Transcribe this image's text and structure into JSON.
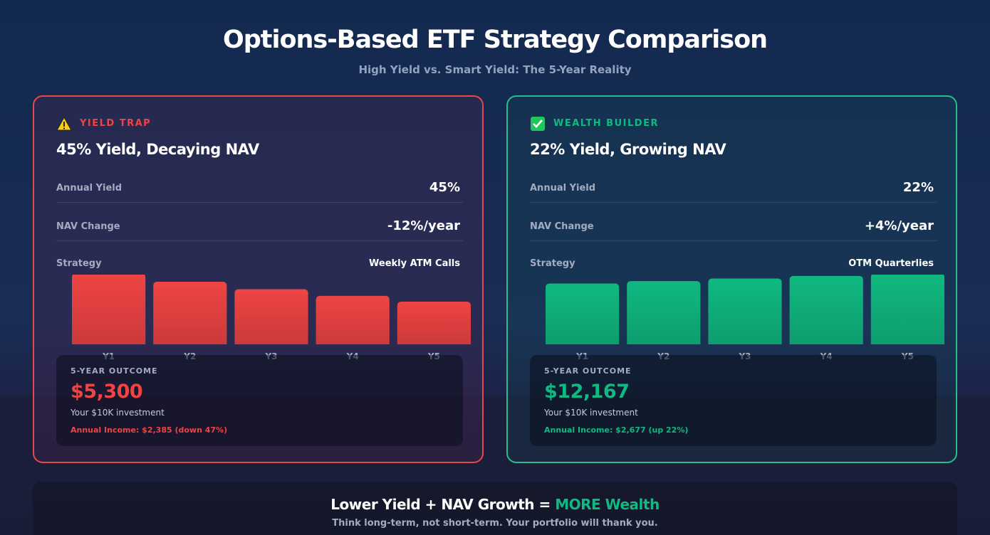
{
  "header": {
    "title": "Options-Based ETF Strategy Comparison",
    "subtitle": "High Yield vs. Smart Yield: The 5-Year Reality"
  },
  "cards": [
    {
      "badge": "YIELD TRAP",
      "heading": "45% Yield, Decaying NAV",
      "rows": [
        {
          "label": "Annual Yield",
          "value": "45%"
        },
        {
          "label": "NAV Change",
          "value": "-12%/year"
        },
        {
          "label": "Strategy",
          "value": "Weekly ATM Calls"
        }
      ],
      "outcome": {
        "label": "5-YEAR OUTCOME",
        "amount": "$5,300",
        "note": "Your $10K investment",
        "income": "Annual Income: $2,385 (down 47%)"
      }
    },
    {
      "badge": "WEALTH BUILDER",
      "heading": "22% Yield, Growing NAV",
      "rows": [
        {
          "label": "Annual Yield",
          "value": "22%"
        },
        {
          "label": "NAV Change",
          "value": "+4%/year"
        },
        {
          "label": "Strategy",
          "value": "OTM Quarterlies"
        }
      ],
      "outcome": {
        "label": "5-YEAR OUTCOME",
        "amount": "$12,167",
        "note": "Your $10K investment",
        "income": "Annual Income: $2,677 (up 22%)"
      }
    }
  ],
  "chart_data": [
    {
      "type": "bar",
      "categories": [
        "Y1",
        "Y2",
        "Y3",
        "Y4",
        "Y5"
      ],
      "values": [
        8800,
        7744,
        6815,
        5997,
        5277
      ],
      "color": "#ef4444"
    },
    {
      "type": "bar",
      "categories": [
        "Y1",
        "Y2",
        "Y3",
        "Y4",
        "Y5"
      ],
      "values": [
        10400,
        10816,
        11249,
        11699,
        12167
      ],
      "color": "#10b981"
    }
  ],
  "footer": {
    "headline": "Lower Yield + NAV Growth =",
    "highlight": "MORE Wealth",
    "subline": "Think long-term, not short-term. Your portfolio will thank you."
  }
}
